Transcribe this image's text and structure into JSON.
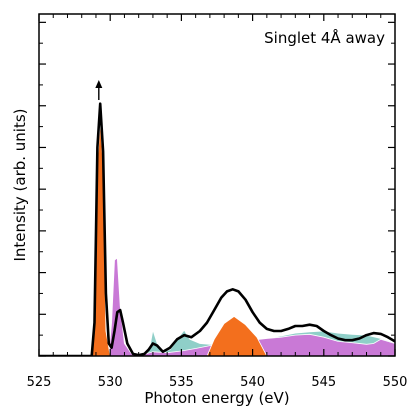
{
  "chart_data": {
    "type": "area",
    "title": "",
    "xlabel": "Photon energy (eV)",
    "ylabel": "Intensity (arb. units)",
    "annotation": "Singlet 4Å away",
    "xlim": [
      525,
      550
    ],
    "ylim": [
      0,
      8.2
    ],
    "x_ticks": [
      525,
      530,
      535,
      540,
      545,
      550
    ],
    "x_tick_labels": [
      "525",
      "530",
      "535",
      "540",
      "545",
      "550"
    ],
    "y_tick_labels_shown": false,
    "grid": false,
    "arrow_at_x": 529.2,
    "series": [
      {
        "color": "#8fcfc8",
        "style": "filled",
        "x": [
          525,
          532.5,
          532.8,
          533.0,
          533.3,
          533.7,
          534.2,
          534.8,
          535.2,
          535.6,
          536.3,
          537,
          538,
          539,
          540,
          541,
          542,
          543,
          544,
          545,
          546,
          547,
          548,
          549,
          550
        ],
        "y": [
          0,
          0,
          0.25,
          0.62,
          0.3,
          0.1,
          0.15,
          0.45,
          0.62,
          0.4,
          0.3,
          0.28,
          0.28,
          0.32,
          0.38,
          0.42,
          0.48,
          0.55,
          0.58,
          0.6,
          0.55,
          0.52,
          0.5,
          0.42,
          0.32
        ]
      },
      {
        "color": "#c979d6",
        "style": "filled",
        "x": [
          525,
          529.9,
          530.1,
          530.3,
          530.5,
          530.7,
          531,
          531.5,
          532,
          532.5,
          533,
          534,
          535,
          536,
          537,
          538,
          539,
          540,
          541,
          542,
          543,
          544,
          545,
          546,
          547,
          548,
          548.5,
          549,
          550
        ],
        "y": [
          0,
          0,
          0.8,
          2.3,
          2.35,
          1.2,
          0.3,
          0.05,
          0.0,
          0.05,
          0.1,
          0.08,
          0.12,
          0.18,
          0.25,
          0.3,
          0.33,
          0.38,
          0.42,
          0.45,
          0.5,
          0.52,
          0.45,
          0.35,
          0.32,
          0.28,
          0.3,
          0.4,
          0.3
        ]
      },
      {
        "color": "#f36f1d",
        "style": "filled",
        "x": [
          525,
          528.6,
          528.9,
          529.1,
          529.3,
          529.5,
          529.7,
          530,
          536.8,
          537.3,
          538,
          538.7,
          539.5,
          540.3,
          541
        ],
        "y": [
          0,
          0,
          0.6,
          4.6,
          5.6,
          4.6,
          0.6,
          0,
          0,
          0.4,
          0.78,
          0.95,
          0.75,
          0.45,
          0.0
        ]
      },
      {
        "color": "#000000",
        "style": "line",
        "x": [
          525,
          528.7,
          528.9,
          529.1,
          529.3,
          529.5,
          529.7,
          529.9,
          530.1,
          530.3,
          530.5,
          530.7,
          530.9,
          531.2,
          531.6,
          532,
          532.4,
          532.7,
          533.0,
          533.3,
          533.7,
          534.2,
          534.7,
          535.2,
          535.7,
          536.3,
          536.8,
          537.3,
          537.8,
          538.2,
          538.6,
          539.0,
          539.5,
          540.0,
          540.5,
          541,
          541.5,
          542,
          542.5,
          543,
          543.5,
          544,
          544.5,
          545,
          545.5,
          546,
          546.5,
          547,
          547.5,
          548,
          548.5,
          549,
          549.5,
          550
        ],
        "y": [
          0,
          0,
          0.8,
          5.0,
          6.05,
          4.9,
          1.5,
          0.3,
          0.2,
          0.6,
          1.05,
          1.1,
          0.8,
          0.3,
          0.05,
          0.02,
          0.05,
          0.15,
          0.3,
          0.25,
          0.1,
          0.2,
          0.4,
          0.5,
          0.45,
          0.6,
          0.8,
          1.1,
          1.4,
          1.55,
          1.6,
          1.55,
          1.35,
          1.05,
          0.8,
          0.65,
          0.6,
          0.6,
          0.65,
          0.72,
          0.72,
          0.75,
          0.72,
          0.6,
          0.5,
          0.42,
          0.38,
          0.38,
          0.42,
          0.5,
          0.55,
          0.53,
          0.45,
          0.35
        ]
      }
    ]
  }
}
